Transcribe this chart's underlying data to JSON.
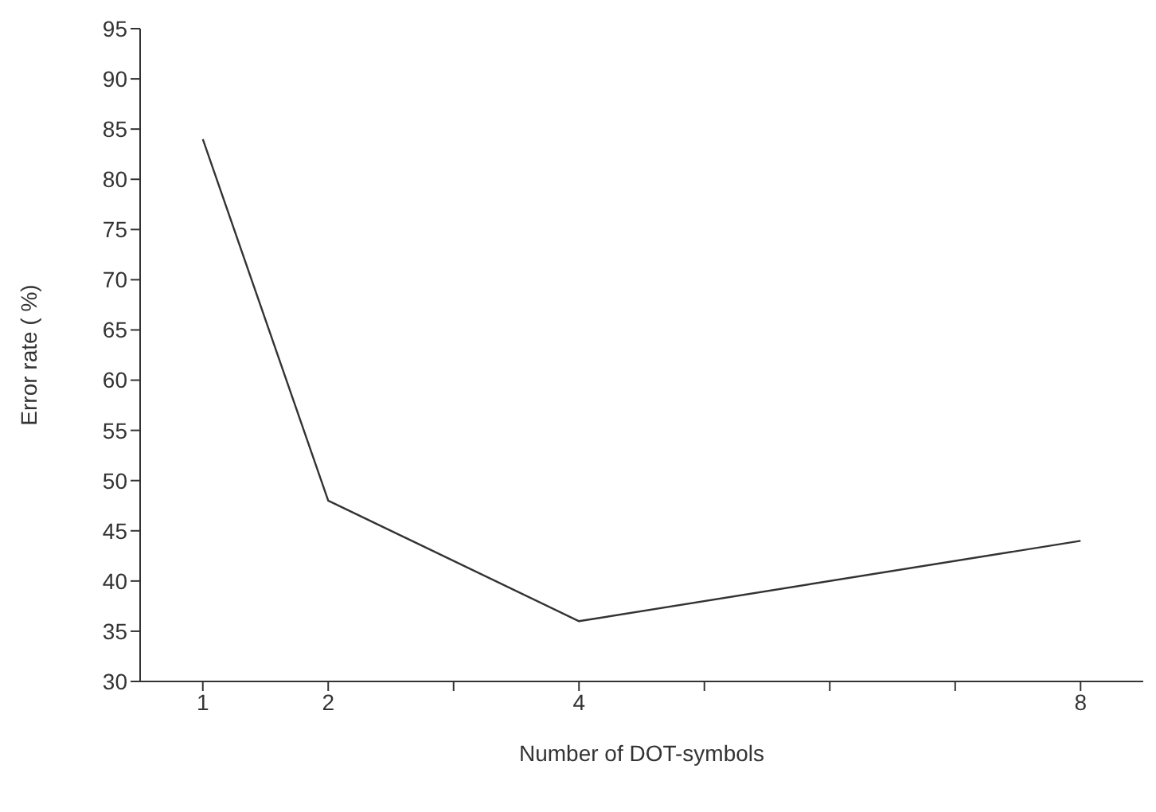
{
  "chart_data": {
    "type": "line",
    "xlabel": "Number of DOT-symbols",
    "ylabel": "Error rate ( %)",
    "x": [
      1,
      2,
      4,
      8
    ],
    "series": [
      {
        "color": "#333333",
        "values": [
          84,
          48,
          36,
          44
        ]
      }
    ],
    "xlim": [
      0.5,
      8.5
    ],
    "xticks": [
      1,
      2,
      {
        "value": 3,
        "label": null
      },
      4,
      {
        "value": 5,
        "label": null
      },
      {
        "value": 6,
        "label": null
      },
      {
        "value": 7,
        "label": null
      },
      8
    ],
    "ylim": [
      30,
      95
    ],
    "yticks": [
      30,
      35,
      40,
      45,
      50,
      55,
      60,
      65,
      70,
      75,
      80,
      85,
      90,
      95
    ],
    "grid": false,
    "legend": false,
    "marker": "none",
    "line_style": "solid"
  }
}
